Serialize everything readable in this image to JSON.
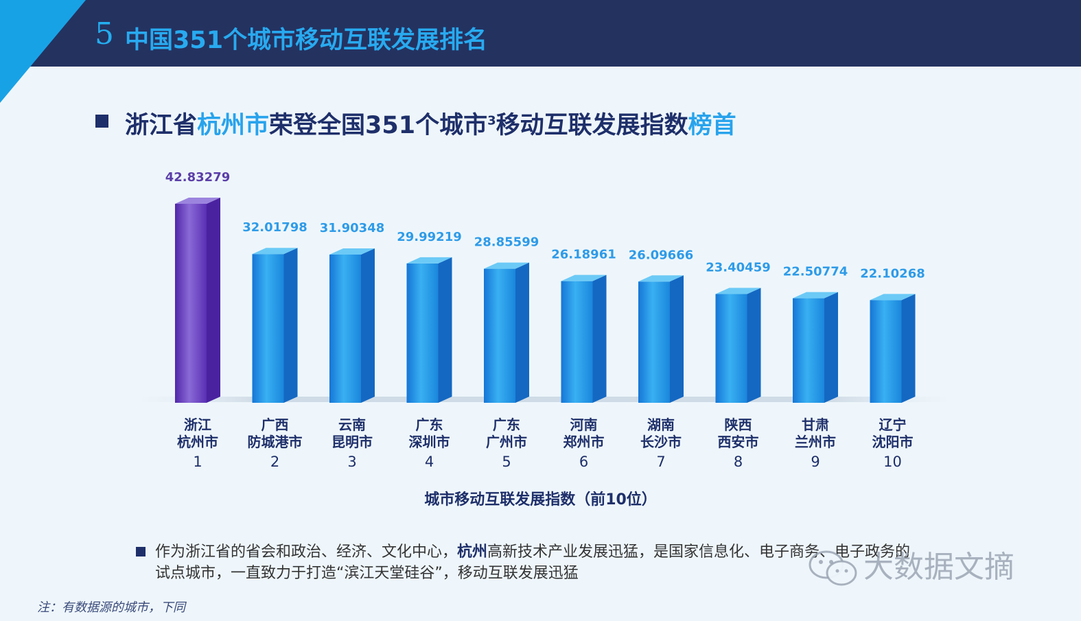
{
  "slide": {
    "number": "5",
    "title": "中国351个城市移动互联发展排名"
  },
  "headline": {
    "part1": "浙江省",
    "highlight1": "杭州市",
    "part2": "荣登全国351个城市",
    "sup": "3",
    "part3": "移动互联发展指数",
    "highlight2": "榜首"
  },
  "chart_data": {
    "type": "bar",
    "title": "",
    "xlabel": "城市移动互联发展指数（前10位）",
    "ylabel": "",
    "ylim": [
      0,
      45
    ],
    "categories": [
      {
        "province": "浙江",
        "city": "杭州市",
        "rank": "1"
      },
      {
        "province": "广西",
        "city": "防城港市",
        "rank": "2"
      },
      {
        "province": "云南",
        "city": "昆明市",
        "rank": "3"
      },
      {
        "province": "广东",
        "city": "深圳市",
        "rank": "4"
      },
      {
        "province": "广东",
        "city": "广州市",
        "rank": "5"
      },
      {
        "province": "河南",
        "city": "郑州市",
        "rank": "6"
      },
      {
        "province": "湖南",
        "city": "长沙市",
        "rank": "7"
      },
      {
        "province": "陕西",
        "city": "西安市",
        "rank": "8"
      },
      {
        "province": "甘肃",
        "city": "兰州市",
        "rank": "9"
      },
      {
        "province": "辽宁",
        "city": "沈阳市",
        "rank": "10"
      }
    ],
    "values": [
      42.83279,
      32.01798,
      31.90348,
      29.99219,
      28.85599,
      26.18961,
      26.09666,
      23.40459,
      22.50774,
      22.10268
    ],
    "value_labels": [
      "42.83279",
      "32.01798",
      "31.90348",
      "29.99219",
      "28.85599",
      "26.18961",
      "26.09666",
      "23.40459",
      "22.50774",
      "22.10268"
    ],
    "colors": {
      "highlight": "#6a3fb8",
      "highlight_label": "#5b3ea8",
      "bar": "#1f8fe0",
      "label": "#2e9be8"
    }
  },
  "bullet": {
    "text1": "作为浙江省的省会和政治、经济、文化中心，",
    "bold": "杭州",
    "text2": "高新技术产业发展迅猛，是国家信息化、电子商务、电子政务的试点城市，一直致力于打造“滨江天堂硅谷”，移动互联发展迅猛"
  },
  "note": "注：有数据源的城市，下同",
  "watermark": {
    "text": "大数据文摘",
    "icon": "wechat-icon"
  }
}
